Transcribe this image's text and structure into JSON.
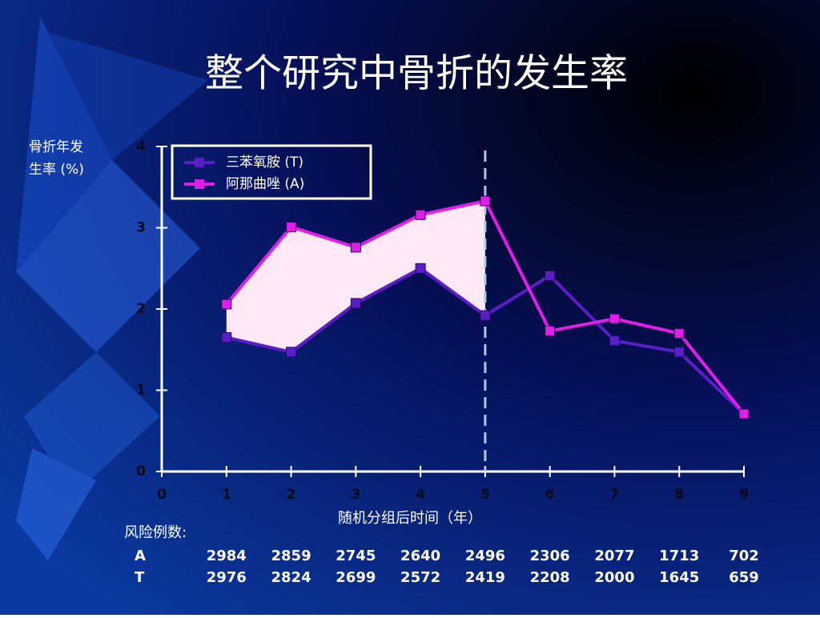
{
  "chart_data": {
    "type": "line",
    "title": "整个研究中骨折的发生率",
    "y_label": "骨折年发生率 (%)",
    "x_label": "随机分组后时间（年）",
    "x": [
      1,
      2,
      3,
      4,
      5,
      6,
      7,
      8,
      9
    ],
    "series": [
      {
        "name": "三苯氧胺 (T)",
        "color": "#5a1ec8",
        "values": [
          1.65,
          1.47,
          2.07,
          2.5,
          1.92,
          2.41,
          1.61,
          1.47,
          0.71
        ]
      },
      {
        "name": "阿那曲唑 (A)",
        "color": "#e01ee6",
        "values": [
          2.06,
          3.01,
          2.76,
          3.16,
          3.33,
          1.73,
          1.88,
          1.7,
          0.71
        ]
      }
    ],
    "xlim": [
      0,
      9
    ],
    "xticks": [
      0,
      1,
      2,
      3,
      4,
      5,
      6,
      7,
      8,
      9
    ],
    "ylim": [
      0,
      4
    ],
    "yticks": [
      0,
      1,
      2,
      3,
      4
    ],
    "reference_line_x": 5,
    "shade_xlim": [
      1,
      5
    ],
    "shade_color": "#fde8f6",
    "legend": "upper left"
  },
  "risk_table": {
    "title": "风险例数:",
    "rows": [
      {
        "label": "A",
        "values": [
          2984,
          2859,
          2745,
          2640,
          2496,
          2306,
          2077,
          1713,
          702
        ]
      },
      {
        "label": "T",
        "values": [
          2976,
          2824,
          2699,
          2572,
          2419,
          2208,
          2000,
          1645,
          659
        ]
      }
    ]
  }
}
